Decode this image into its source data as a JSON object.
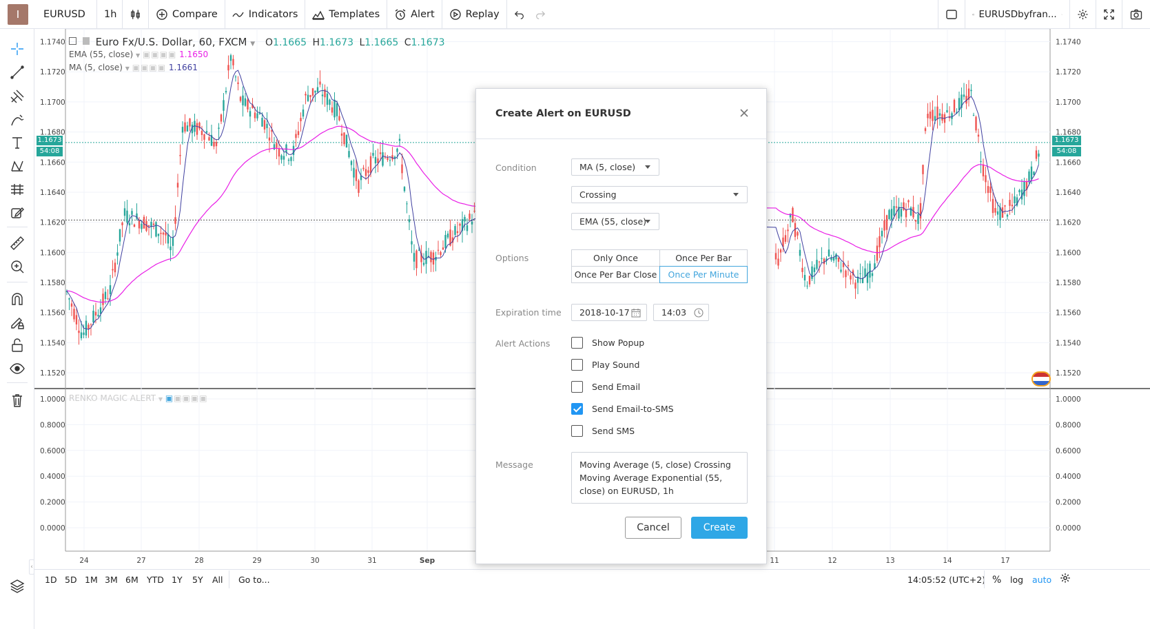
{
  "app": {
    "logo": "I"
  },
  "toolbar": {
    "symbol": "EURUSD",
    "interval": "1h",
    "compare": "Compare",
    "indicators": "Indicators",
    "templates": "Templates",
    "alert": "Alert",
    "replay": "Replay",
    "layout_name": "EURUSDbyfran..."
  },
  "legend": {
    "title": "Euro Fx/U.S. Dollar, 60, FXCM",
    "o_label": "O",
    "o": "1.1665",
    "h_label": "H",
    "h": "1.1673",
    "l_label": "L",
    "l": "1.1665",
    "c_label": "C",
    "c": "1.1673",
    "ema_label": "EMA (55, close)",
    "ema_value": "1.1650",
    "ma_label": "MA (5, close)",
    "ma_value": "1.1661",
    "renko_label": "RENKO MAGIC ALERT"
  },
  "price_axis": {
    "ticks": [
      "1.1740",
      "1.1720",
      "1.1700",
      "1.1680",
      "1.1660",
      "1.1640",
      "1.1620",
      "1.1600",
      "1.1580",
      "1.1560",
      "1.1540",
      "1.1520"
    ],
    "last_price": "1.1673",
    "countdown": "54:08"
  },
  "indicator_axis": {
    "ticks": [
      "1.0000",
      "0.8000",
      "0.6000",
      "0.4000",
      "0.2000",
      "0.0000"
    ]
  },
  "time_axis": {
    "ticks": [
      "24",
      "27",
      "28",
      "29",
      "30",
      "31",
      "Sep",
      "11",
      "12",
      "13",
      "14",
      "17"
    ]
  },
  "bottom": {
    "ranges": [
      "1D",
      "5D",
      "1M",
      "3M",
      "6M",
      "YTD",
      "1Y",
      "5Y",
      "All"
    ],
    "goto": "Go to...",
    "clock": "14:05:52 (UTC+2)",
    "pct": "%",
    "log": "log",
    "auto": "auto"
  },
  "colors": {
    "up": "#26a69a",
    "down": "#ef5350",
    "ema": "#e91ee6",
    "ma": "#3f3f9f",
    "accent": "#2ea7e6",
    "last_price": "#26a69a"
  },
  "dialog": {
    "title": "Create Alert on EURUSD",
    "condition_label": "Condition",
    "condition_source": "MA (5, close)",
    "condition_op": "Crossing",
    "condition_target": "EMA (55, close)",
    "options_label": "Options",
    "options": [
      "Only Once",
      "Once Per Bar",
      "Once Per Bar Close",
      "Once Per Minute"
    ],
    "options_selected": "Once Per Minute",
    "expiration_label": "Expiration time",
    "expiration_date": "2018-10-17",
    "expiration_time": "14:03",
    "actions_label": "Alert Actions",
    "actions": [
      {
        "label": "Show Popup",
        "checked": false
      },
      {
        "label": "Play Sound",
        "checked": false
      },
      {
        "label": "Send Email",
        "checked": false
      },
      {
        "label": "Send Email-to-SMS",
        "checked": true
      },
      {
        "label": "Send SMS",
        "checked": false
      }
    ],
    "message_label": "Message",
    "message": "Moving Average (5, close) Crossing Moving Average Exponential (55, close) on EURUSD, 1h",
    "cancel": "Cancel",
    "create": "Create"
  }
}
